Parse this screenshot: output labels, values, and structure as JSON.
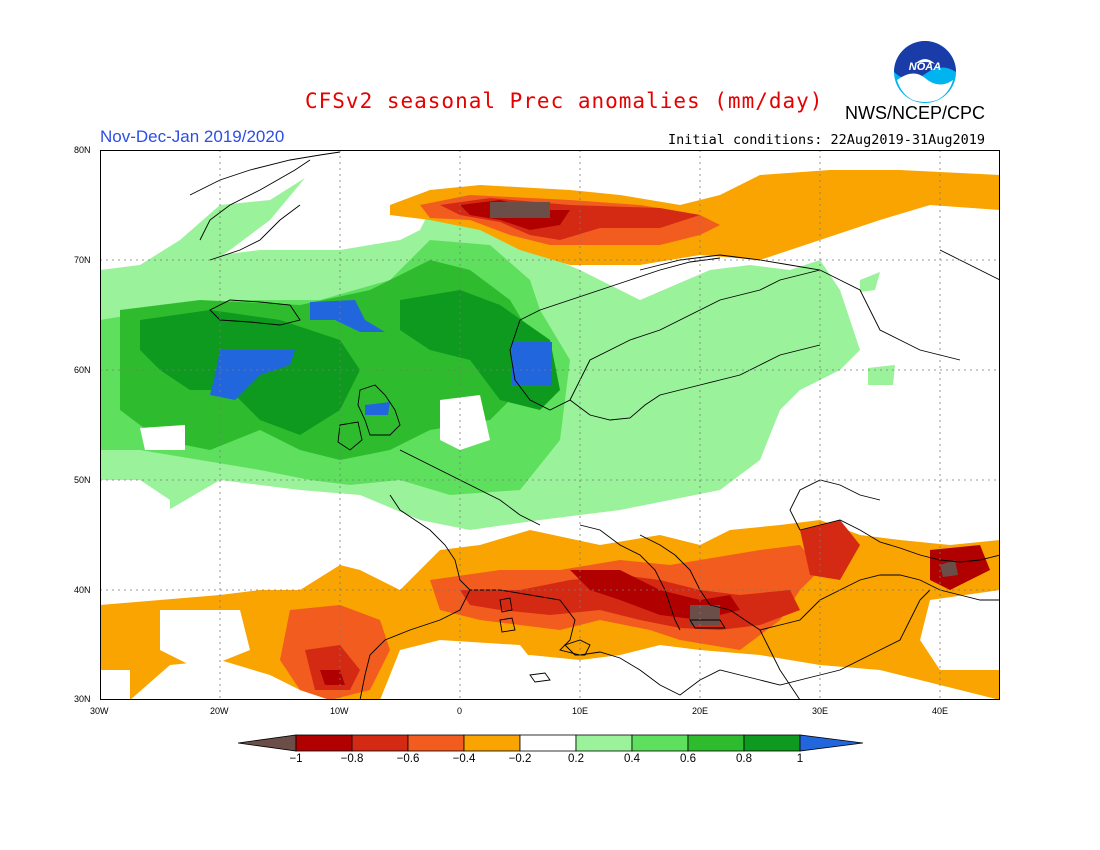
{
  "title": "CFSv2 seasonal Prec anomalies (mm/day)",
  "agency": "NWS/NCEP/CPC",
  "logo_text": "NOAA",
  "period": "Nov-Dec-Jan 2019/2020",
  "initial_conditions": "Initial conditions: 22Aug2019-31Aug2019",
  "lat_labels": [
    "80N",
    "70N",
    "60N",
    "50N",
    "40N",
    "30N"
  ],
  "lon_labels": [
    "30W",
    "20W",
    "10W",
    "0",
    "10E",
    "20E",
    "30E",
    "40E"
  ],
  "colorbar": {
    "labels": [
      "-1",
      "-0.8",
      "-0.6",
      "-0.4",
      "-0.2",
      "0.2",
      "0.4",
      "0.6",
      "0.8",
      "1"
    ],
    "colors": [
      "#6b4e48",
      "#b00000",
      "#d42a14",
      "#f25c1e",
      "#f9a400",
      "#ffffff",
      "#9af29a",
      "#5ee05e",
      "#2ebc2e",
      "#0e9a1e",
      "#2266dd"
    ]
  }
}
